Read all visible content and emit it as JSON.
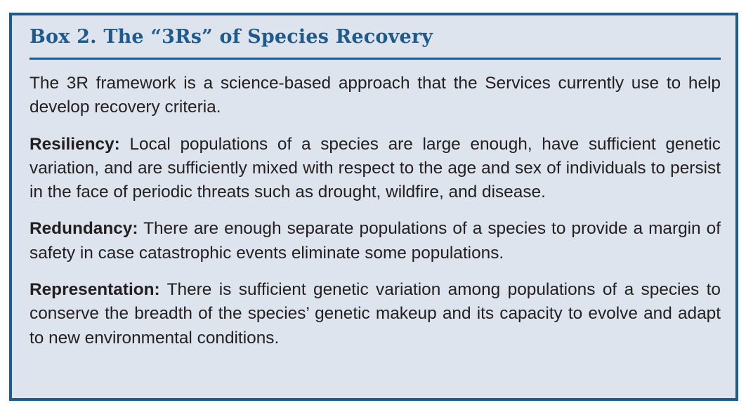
{
  "box": {
    "title": "Box 2. The “3Rs” of Species Recovery",
    "intro": "The 3R framework is a science-based approach that the Services currently use to help develop recovery criteria.",
    "items": [
      {
        "term": "Resiliency:",
        "text": "Local populations of a species are large enough, have sufficient genetic variation, and are sufficiently mixed with respect to the age and sex of individuals to persist in the face of periodic threats such as drought, wildfire, and disease."
      },
      {
        "term": "Redundancy:",
        "text": "There are enough separate populations of a species to provide a margin of safety in case catastrophic events eliminate some populations."
      },
      {
        "term": "Representation:",
        "text": "There is sufficient genetic variation among populations of a species to conserve the breadth of the species’ genetic makeup and its capacity to evolve and adapt to new environmental conditions."
      }
    ]
  },
  "colors": {
    "accent": "#1f5a8a",
    "background": "#dde4ee",
    "text": "#231f20"
  }
}
